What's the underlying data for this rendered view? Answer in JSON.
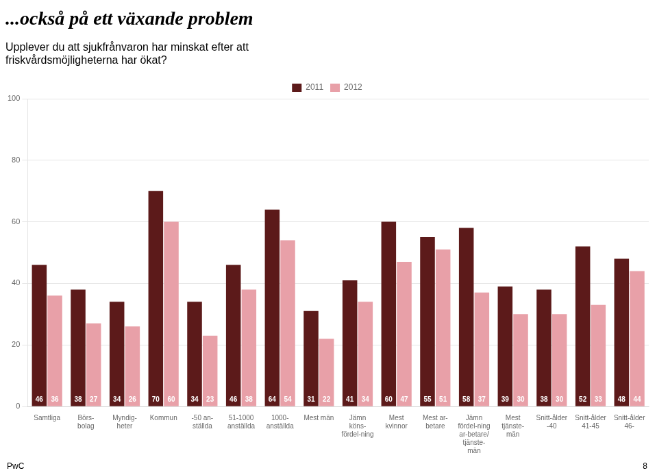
{
  "chart_data": {
    "type": "bar",
    "title": "...också på ett växande problem",
    "subtitle": "Upplever du att sjukfrånvaron har minskat efter att\nfriskvårdsmöjligheterna har ökat?",
    "categories": [
      "Samtliga",
      "Börs-\nbolag",
      "Myndig-\nheter",
      "Kommun",
      "-50 an-\nställda",
      "51-1000\nanställda",
      "1000-\nanställda",
      "Mest män",
      "Jämn\nköns-\nfördel-ning",
      "Mest\nkvinnor",
      "Mest ar-\nbetare",
      "Jämn\nfördel-ning\nar-betare/\ntjänste-\nmän",
      "Mest\ntjänste-\nmän",
      "Snitt-ålder\n-40",
      "Snitt-ålder\n41-45",
      "Snitt-ålder\n46-"
    ],
    "series": [
      {
        "name": "2011",
        "color": "#5c1a1a",
        "values": [
          46,
          38,
          34,
          70,
          34,
          46,
          64,
          31,
          41,
          60,
          55,
          58,
          39,
          38,
          52,
          48
        ]
      },
      {
        "name": "2012",
        "color": "#e8a0a8",
        "values": [
          36,
          27,
          26,
          60,
          23,
          38,
          54,
          22,
          34,
          47,
          51,
          37,
          30,
          30,
          33,
          44
        ]
      }
    ],
    "ylim": [
      0,
      100
    ],
    "yticks": [
      0,
      20,
      40,
      60,
      80,
      100
    ],
    "grid": true,
    "legend": "top",
    "data_labels": true,
    "annotations": [
      "PwC",
      "8"
    ]
  }
}
